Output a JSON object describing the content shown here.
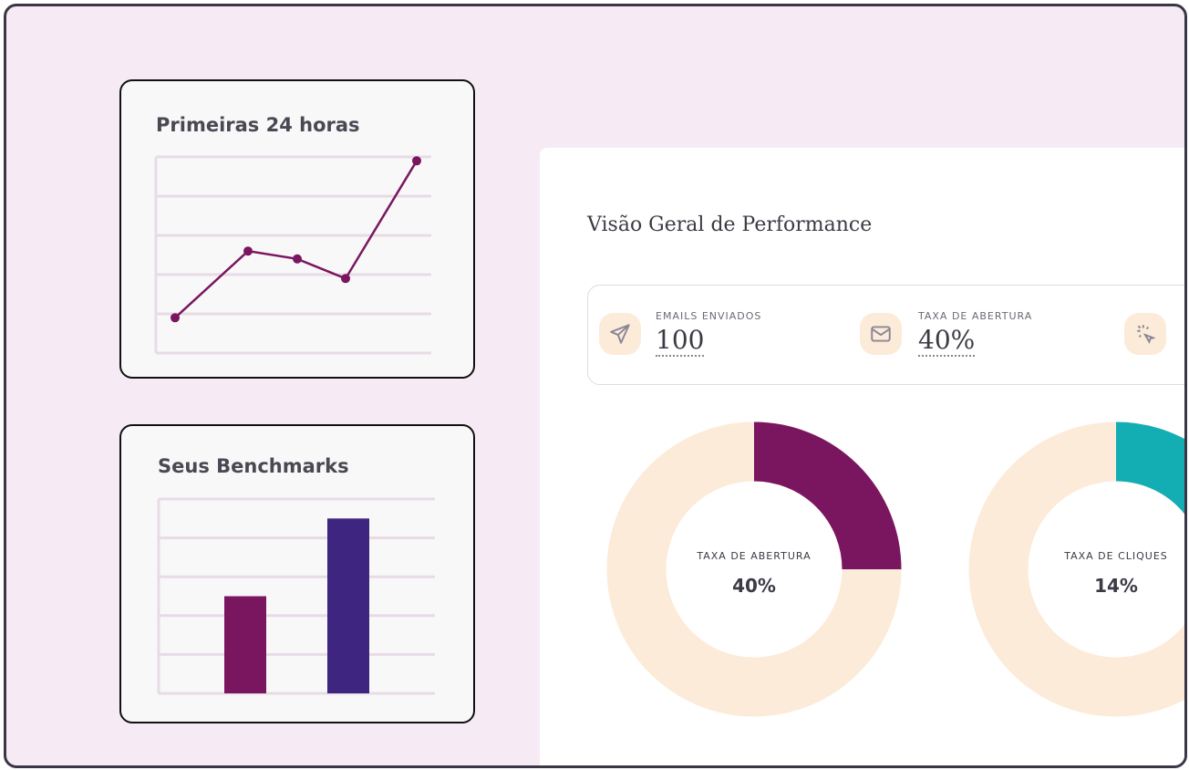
{
  "line_card": {
    "title": "Primeiras 24 horas"
  },
  "bar_card": {
    "title": "Seus Benchmarks"
  },
  "panel": {
    "title": "Visão Geral de Performance",
    "stats": [
      {
        "label": "EMAILS  ENVIADOS",
        "value": "100",
        "icon": "send-icon"
      },
      {
        "label": "TAXA DE ABERTURA",
        "value": "40%",
        "icon": "mail-icon"
      },
      {
        "label": "",
        "value": "",
        "icon": "cursor-click-icon"
      }
    ],
    "donuts": [
      {
        "label": "TAXA DE ABERTURA",
        "value": "40%",
        "color": "#7a1660"
      },
      {
        "label": "TAXA DE CLIQUES",
        "value": "14%",
        "color": "#13aeb3"
      }
    ]
  },
  "colors": {
    "background": "#f6ebf5",
    "purple": "#7a1660",
    "indigo": "#3e2680",
    "teal": "#13aeb3",
    "peach": "#fdebd9"
  },
  "chart_data": [
    {
      "type": "line",
      "title": "Primeiras 24 horas",
      "gridlines": 6,
      "ylim": [
        0,
        5
      ],
      "values": [
        0.9,
        2.6,
        2.4,
        1.9,
        4.9
      ],
      "color": "#7a1660"
    },
    {
      "type": "bar",
      "title": "Seus Benchmarks",
      "gridlines": 6,
      "ylim": [
        0,
        5
      ],
      "values": [
        2.5,
        4.5
      ],
      "colors": [
        "#7a1660",
        "#3e2680"
      ]
    }
  ]
}
